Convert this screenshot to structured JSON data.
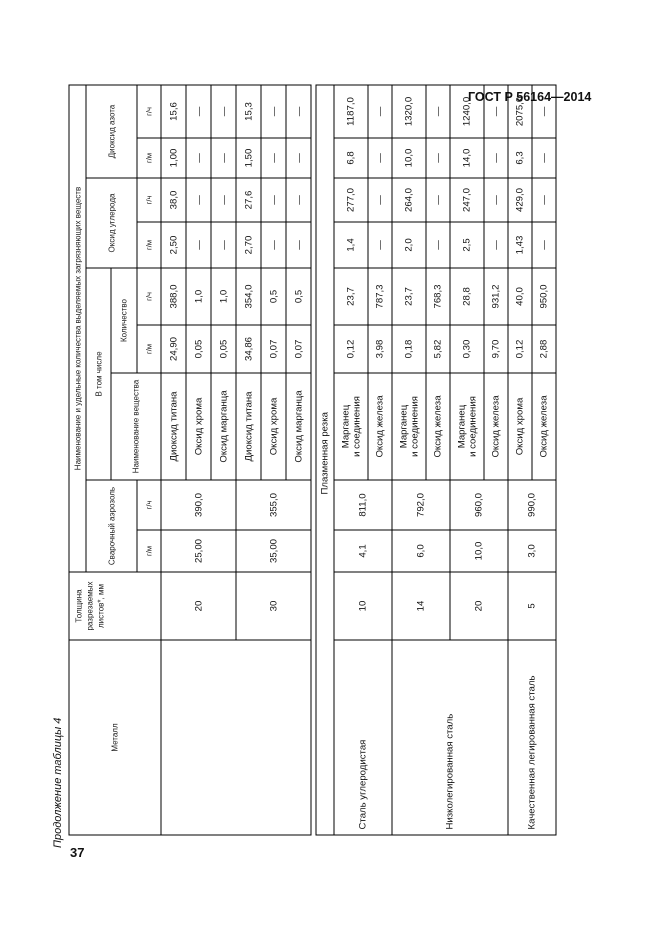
{
  "header": {
    "standard": "ГОСТ Р 56164—2014"
  },
  "caption": "Продолжение таблицы 4",
  "page_number": "37",
  "table": {
    "headers": {
      "metal": "Металл",
      "thickness": "Толщина разрезаемых листов*, мм",
      "emissions": "Наименование и удельные количества выделяемых загрязняющих веществ",
      "aerosol": "Сварочный аэрозоль",
      "including": "В том числе",
      "substance_name": "Наименование вещества",
      "quantity": "Количество",
      "co": "Оксид углерода",
      "no2": "Диоксид азота",
      "unit_gm": "г/м",
      "unit_gh": "г/ч"
    },
    "sections": [
      {
        "title": "",
        "groups": [
          {
            "metal": "",
            "subgroups": [
              {
                "thickness": "20",
                "aerosol_gm": "25,00",
                "aerosol_gh": "390,0",
                "substances": [
                  {
                    "name": "Диоксид титана",
                    "qty_gm": "24,90",
                    "qty_gh": "388,0",
                    "co_gm": "2,50",
                    "co_gh": "38,0",
                    "no2_gm": "1,00",
                    "no2_gh": "15,6"
                  },
                  {
                    "name": "Оксид хрома",
                    "qty_gm": "0,05",
                    "qty_gh": "1,0",
                    "co_gm": "—",
                    "co_gh": "—",
                    "no2_gm": "—",
                    "no2_gh": "—"
                  },
                  {
                    "name": "Оксид марганца",
                    "qty_gm": "0,05",
                    "qty_gh": "1,0",
                    "co_gm": "—",
                    "co_gh": "—",
                    "no2_gm": "—",
                    "no2_gh": "—"
                  }
                ]
              },
              {
                "thickness": "30",
                "aerosol_gm": "35,00",
                "aerosol_gh": "355,0",
                "substances": [
                  {
                    "name": "Диоксид титана",
                    "qty_gm": "34,86",
                    "qty_gh": "354,0",
                    "co_gm": "2,70",
                    "co_gh": "27,6",
                    "no2_gm": "1,50",
                    "no2_gh": "15,3"
                  },
                  {
                    "name": "Оксид хрома",
                    "qty_gm": "0,07",
                    "qty_gh": "0,5",
                    "co_gm": "—",
                    "co_gh": "—",
                    "no2_gm": "—",
                    "no2_gh": "—"
                  },
                  {
                    "name": "Оксид марганца",
                    "qty_gm": "0,07",
                    "qty_gh": "0,5",
                    "co_gm": "—",
                    "co_gh": "—",
                    "no2_gm": "—",
                    "no2_gh": "—"
                  }
                ]
              }
            ]
          }
        ]
      },
      {
        "title": "Плазменная резка",
        "groups": [
          {
            "metal": "Сталь углеродистая",
            "subgroups": [
              {
                "thickness": "10",
                "aerosol_gm": "4,1",
                "aerosol_gh": "811,0",
                "substances": [
                  {
                    "name": "Марганец\nи соединения",
                    "qty_gm": "0,12",
                    "qty_gh": "23,7",
                    "co_gm": "1,4",
                    "co_gh": "277,0",
                    "no2_gm": "6,8",
                    "no2_gh": "1187,0"
                  },
                  {
                    "name": "Оксид железа",
                    "qty_gm": "3,98",
                    "qty_gh": "787,3",
                    "co_gm": "—",
                    "co_gh": "—",
                    "no2_gm": "—",
                    "no2_gh": "—"
                  }
                ]
              }
            ]
          },
          {
            "metal": "Низколегированная сталь",
            "subgroups": [
              {
                "thickness": "14",
                "aerosol_gm": "6,0",
                "aerosol_gh": "792,0",
                "substances": [
                  {
                    "name": "Марганец\nи соединения",
                    "qty_gm": "0,18",
                    "qty_gh": "23,7",
                    "co_gm": "2,0",
                    "co_gh": "264,0",
                    "no2_gm": "10,0",
                    "no2_gh": "1320,0"
                  },
                  {
                    "name": "Оксид железа",
                    "qty_gm": "5,82",
                    "qty_gh": "768,3",
                    "co_gm": "—",
                    "co_gh": "—",
                    "no2_gm": "—",
                    "no2_gh": "—"
                  }
                ]
              },
              {
                "thickness": "20",
                "aerosol_gm": "10,0",
                "aerosol_gh": "960,0",
                "substances": [
                  {
                    "name": "Марганец\nи соединения",
                    "qty_gm": "0,30",
                    "qty_gh": "28,8",
                    "co_gm": "2,5",
                    "co_gh": "247,0",
                    "no2_gm": "14,0",
                    "no2_gh": "1240,0"
                  },
                  {
                    "name": "Оксид железа",
                    "qty_gm": "9,70",
                    "qty_gh": "931,2",
                    "co_gm": "—",
                    "co_gh": "—",
                    "no2_gm": "—",
                    "no2_gh": "—"
                  }
                ]
              }
            ]
          },
          {
            "metal": "Качественная легированная сталь",
            "subgroups": [
              {
                "thickness": "5",
                "aerosol_gm": "3,0",
                "aerosol_gh": "990,0",
                "substances": [
                  {
                    "name": "Оксид хрома",
                    "qty_gm": "0,12",
                    "qty_gh": "40,0",
                    "co_gm": "1,43",
                    "co_gh": "429,0",
                    "no2_gm": "6,3",
                    "no2_gh": "2075,0"
                  },
                  {
                    "name": "Оксид железа",
                    "qty_gm": "2,88",
                    "qty_gh": "950,0",
                    "co_gm": "—",
                    "co_gh": "—",
                    "no2_gm": "—",
                    "no2_gh": "—"
                  }
                ]
              }
            ]
          }
        ]
      }
    ]
  }
}
